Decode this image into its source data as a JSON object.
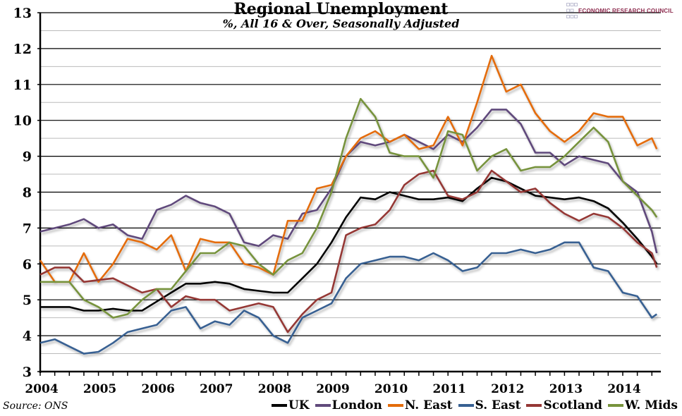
{
  "chart_data": {
    "type": "line",
    "title": "Regional Unemployment",
    "subtitle": "%, All 16 & Over, Seasonally Adjusted",
    "source": "Source: ONS",
    "logo_text": "ECONOMIC RESEARCH COUNCIL",
    "ylim": [
      3,
      13
    ],
    "yticks": [
      3,
      4,
      5,
      6,
      7,
      8,
      9,
      10,
      11,
      12,
      13
    ],
    "xlim": [
      "2004-01",
      "2014-08"
    ],
    "xtick_labels": [
      "2004",
      "2005",
      "2006",
      "2007",
      "2008",
      "2009",
      "2010",
      "2011",
      "2012",
      "2013",
      "2014"
    ],
    "grid": true,
    "legend": "bottom-right",
    "x": [
      "2004-01",
      "2004-04",
      "2004-07",
      "2004-10",
      "2005-01",
      "2005-04",
      "2005-07",
      "2005-10",
      "2006-01",
      "2006-04",
      "2006-07",
      "2006-10",
      "2007-01",
      "2007-04",
      "2007-07",
      "2007-10",
      "2008-01",
      "2008-04",
      "2008-07",
      "2008-10",
      "2009-01",
      "2009-04",
      "2009-07",
      "2009-10",
      "2010-01",
      "2010-04",
      "2010-07",
      "2010-10",
      "2011-01",
      "2011-04",
      "2011-07",
      "2011-10",
      "2012-01",
      "2012-04",
      "2012-07",
      "2012-10",
      "2013-01",
      "2013-04",
      "2013-07",
      "2013-10",
      "2014-01",
      "2014-04",
      "2014-07",
      "2014-08"
    ],
    "series": [
      {
        "name": "UK",
        "color": "#000000",
        "values": [
          4.8,
          4.8,
          4.8,
          4.7,
          4.7,
          4.75,
          4.7,
          4.7,
          4.95,
          5.2,
          5.45,
          5.45,
          5.5,
          5.45,
          5.3,
          5.25,
          5.2,
          5.2,
          5.6,
          6.0,
          6.6,
          7.3,
          7.85,
          7.8,
          8.0,
          7.9,
          7.8,
          7.8,
          7.85,
          7.75,
          8.1,
          8.4,
          8.3,
          8.1,
          7.9,
          7.85,
          7.8,
          7.85,
          7.75,
          7.55,
          7.15,
          6.7,
          6.2,
          6.0
        ]
      },
      {
        "name": "London",
        "color": "#604a7b",
        "values": [
          6.9,
          7.0,
          7.1,
          7.25,
          7.0,
          7.1,
          6.8,
          6.7,
          7.5,
          7.65,
          7.9,
          7.7,
          7.6,
          7.4,
          6.6,
          6.5,
          6.8,
          6.7,
          7.4,
          7.5,
          8.1,
          9.0,
          9.4,
          9.3,
          9.4,
          9.6,
          9.4,
          9.2,
          9.6,
          9.4,
          9.8,
          10.3,
          10.3,
          9.9,
          9.1,
          9.1,
          8.75,
          9.0,
          8.9,
          8.8,
          8.3,
          8.0,
          6.9,
          6.3
        ]
      },
      {
        "name": "N. East",
        "color": "#e46c0a",
        "values": [
          6.1,
          5.5,
          5.5,
          6.3,
          5.5,
          6.0,
          6.7,
          6.6,
          6.4,
          6.8,
          5.8,
          6.7,
          6.6,
          6.6,
          6.0,
          5.9,
          5.7,
          7.2,
          7.2,
          8.1,
          8.2,
          9.0,
          9.5,
          9.7,
          9.4,
          9.6,
          9.2,
          9.3,
          10.1,
          9.3,
          10.5,
          11.8,
          10.8,
          11.0,
          10.2,
          9.7,
          9.4,
          9.7,
          10.2,
          10.1,
          10.1,
          9.3,
          9.5,
          9.2
        ]
      },
      {
        "name": "S. East",
        "color": "#376092",
        "values": [
          3.8,
          3.9,
          3.7,
          3.5,
          3.55,
          3.8,
          4.1,
          4.2,
          4.3,
          4.7,
          4.8,
          4.2,
          4.4,
          4.3,
          4.7,
          4.5,
          4.0,
          3.8,
          4.5,
          4.7,
          4.9,
          5.6,
          6.0,
          6.1,
          6.2,
          6.2,
          6.1,
          6.3,
          6.1,
          5.8,
          5.9,
          6.3,
          6.3,
          6.4,
          6.3,
          6.4,
          6.6,
          6.6,
          5.9,
          5.8,
          5.2,
          5.1,
          4.5,
          4.6
        ]
      },
      {
        "name": "Scotland",
        "color": "#953735",
        "values": [
          5.7,
          5.9,
          5.9,
          5.5,
          5.55,
          5.6,
          5.4,
          5.2,
          5.3,
          4.8,
          5.1,
          5.0,
          5.0,
          4.7,
          4.8,
          4.9,
          4.8,
          4.1,
          4.6,
          5.0,
          5.2,
          6.8,
          7.0,
          7.1,
          7.5,
          8.2,
          8.5,
          8.6,
          7.9,
          7.8,
          8.0,
          8.6,
          8.3,
          8.0,
          8.1,
          7.7,
          7.4,
          7.2,
          7.4,
          7.3,
          7.0,
          6.6,
          6.3,
          5.9
        ]
      },
      {
        "name": "W. Mids",
        "color": "#77933c",
        "values": [
          5.5,
          5.5,
          5.5,
          5.0,
          4.8,
          4.5,
          4.6,
          5.0,
          5.3,
          5.3,
          5.8,
          6.3,
          6.3,
          6.6,
          6.5,
          6.0,
          5.7,
          6.1,
          6.3,
          7.0,
          8.0,
          9.5,
          10.6,
          10.1,
          9.1,
          9.0,
          9.0,
          8.4,
          9.7,
          9.6,
          8.6,
          9.0,
          9.2,
          8.6,
          8.7,
          8.7,
          9.0,
          9.4,
          9.8,
          9.4,
          8.3,
          7.9,
          7.5,
          7.3
        ]
      }
    ]
  }
}
